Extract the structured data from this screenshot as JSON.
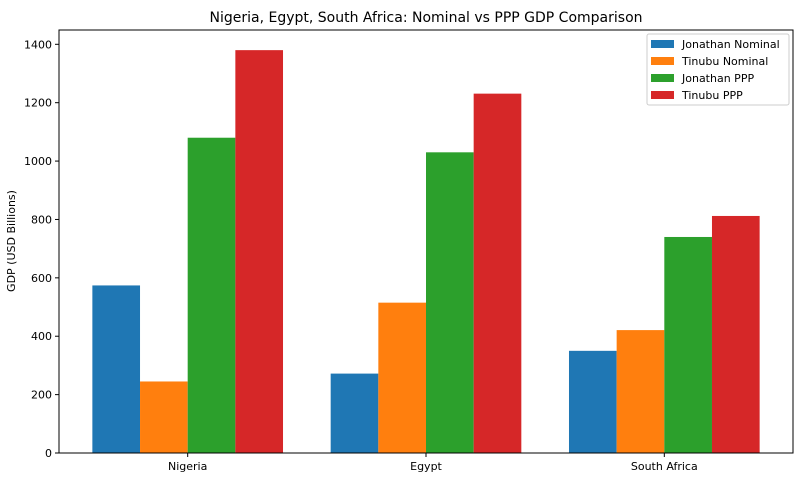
{
  "chart_data": {
    "type": "bar",
    "title": "Nigeria, Egypt, South Africa: Nominal vs PPP GDP Comparison",
    "xlabel": "",
    "ylabel": "GDP (USD Billions)",
    "categories": [
      "Nigeria",
      "Egypt",
      "South Africa"
    ],
    "series": [
      {
        "name": "Jonathan Nominal",
        "color": "#1f77b4",
        "values": [
          574,
          272,
          350
        ]
      },
      {
        "name": "Tinubu Nominal",
        "color": "#ff7f0e",
        "values": [
          245,
          515,
          421
        ]
      },
      {
        "name": "Jonathan PPP",
        "color": "#2ca02c",
        "values": [
          1080,
          1030,
          740
        ]
      },
      {
        "name": "Tinubu PPP",
        "color": "#d62728",
        "values": [
          1380,
          1231,
          812
        ]
      }
    ],
    "ylim": [
      0,
      1449
    ],
    "yticks": [
      0,
      200,
      400,
      600,
      800,
      1000,
      1200,
      1400
    ],
    "grid": false,
    "legend_position": "top-right"
  }
}
